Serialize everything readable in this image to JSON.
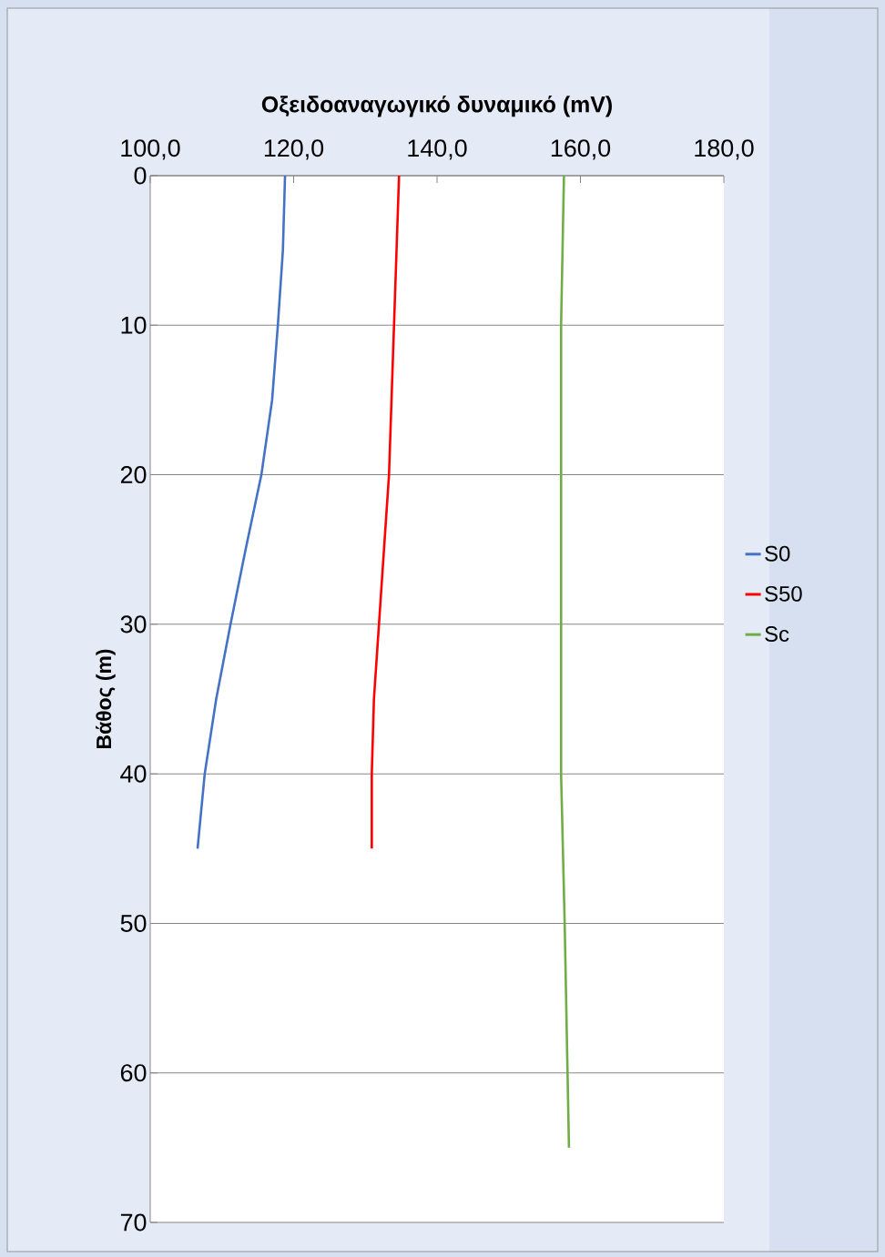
{
  "chart_data": {
    "type": "line",
    "xlabel": "Οξειδοαναγωγικό δυναμικό (mV)",
    "ylabel": "Βάθος (m)",
    "xlim": [
      100,
      180
    ],
    "ylim": [
      70,
      0
    ],
    "xticks": [
      {
        "value": 100,
        "label": "100,0"
      },
      {
        "value": 120,
        "label": "120,0"
      },
      {
        "value": 140,
        "label": "140,0"
      },
      {
        "value": 160,
        "label": "160,0"
      },
      {
        "value": 180,
        "label": "180,0"
      }
    ],
    "yticks": [
      0,
      10,
      20,
      30,
      40,
      50,
      60,
      70
    ],
    "grid": "y",
    "legend": "right",
    "marker": "none",
    "line_style": "solid",
    "series": [
      {
        "name": "S0",
        "color": "#4472c4",
        "x": [
          118.8,
          118.5,
          117.8,
          117.0,
          115.5,
          113.3,
          111.2,
          109.2,
          107.6,
          106.6
        ],
        "values": [
          0,
          5,
          10,
          15,
          20,
          25,
          30,
          35,
          40,
          45
        ]
      },
      {
        "name": "S50",
        "color": "#ff0000",
        "x": [
          134.7,
          134.0,
          133.3,
          131.9,
          131.2,
          130.9,
          130.9
        ],
        "values": [
          0,
          10,
          20,
          30,
          35,
          40,
          45
        ]
      },
      {
        "name": "Sc",
        "color": "#70ad47",
        "x": [
          157.7,
          157.3,
          157.3,
          157.3,
          157.3,
          157.8,
          158.2,
          158.4
        ],
        "values": [
          0,
          10,
          20,
          30,
          40,
          50,
          60,
          65
        ]
      }
    ]
  }
}
